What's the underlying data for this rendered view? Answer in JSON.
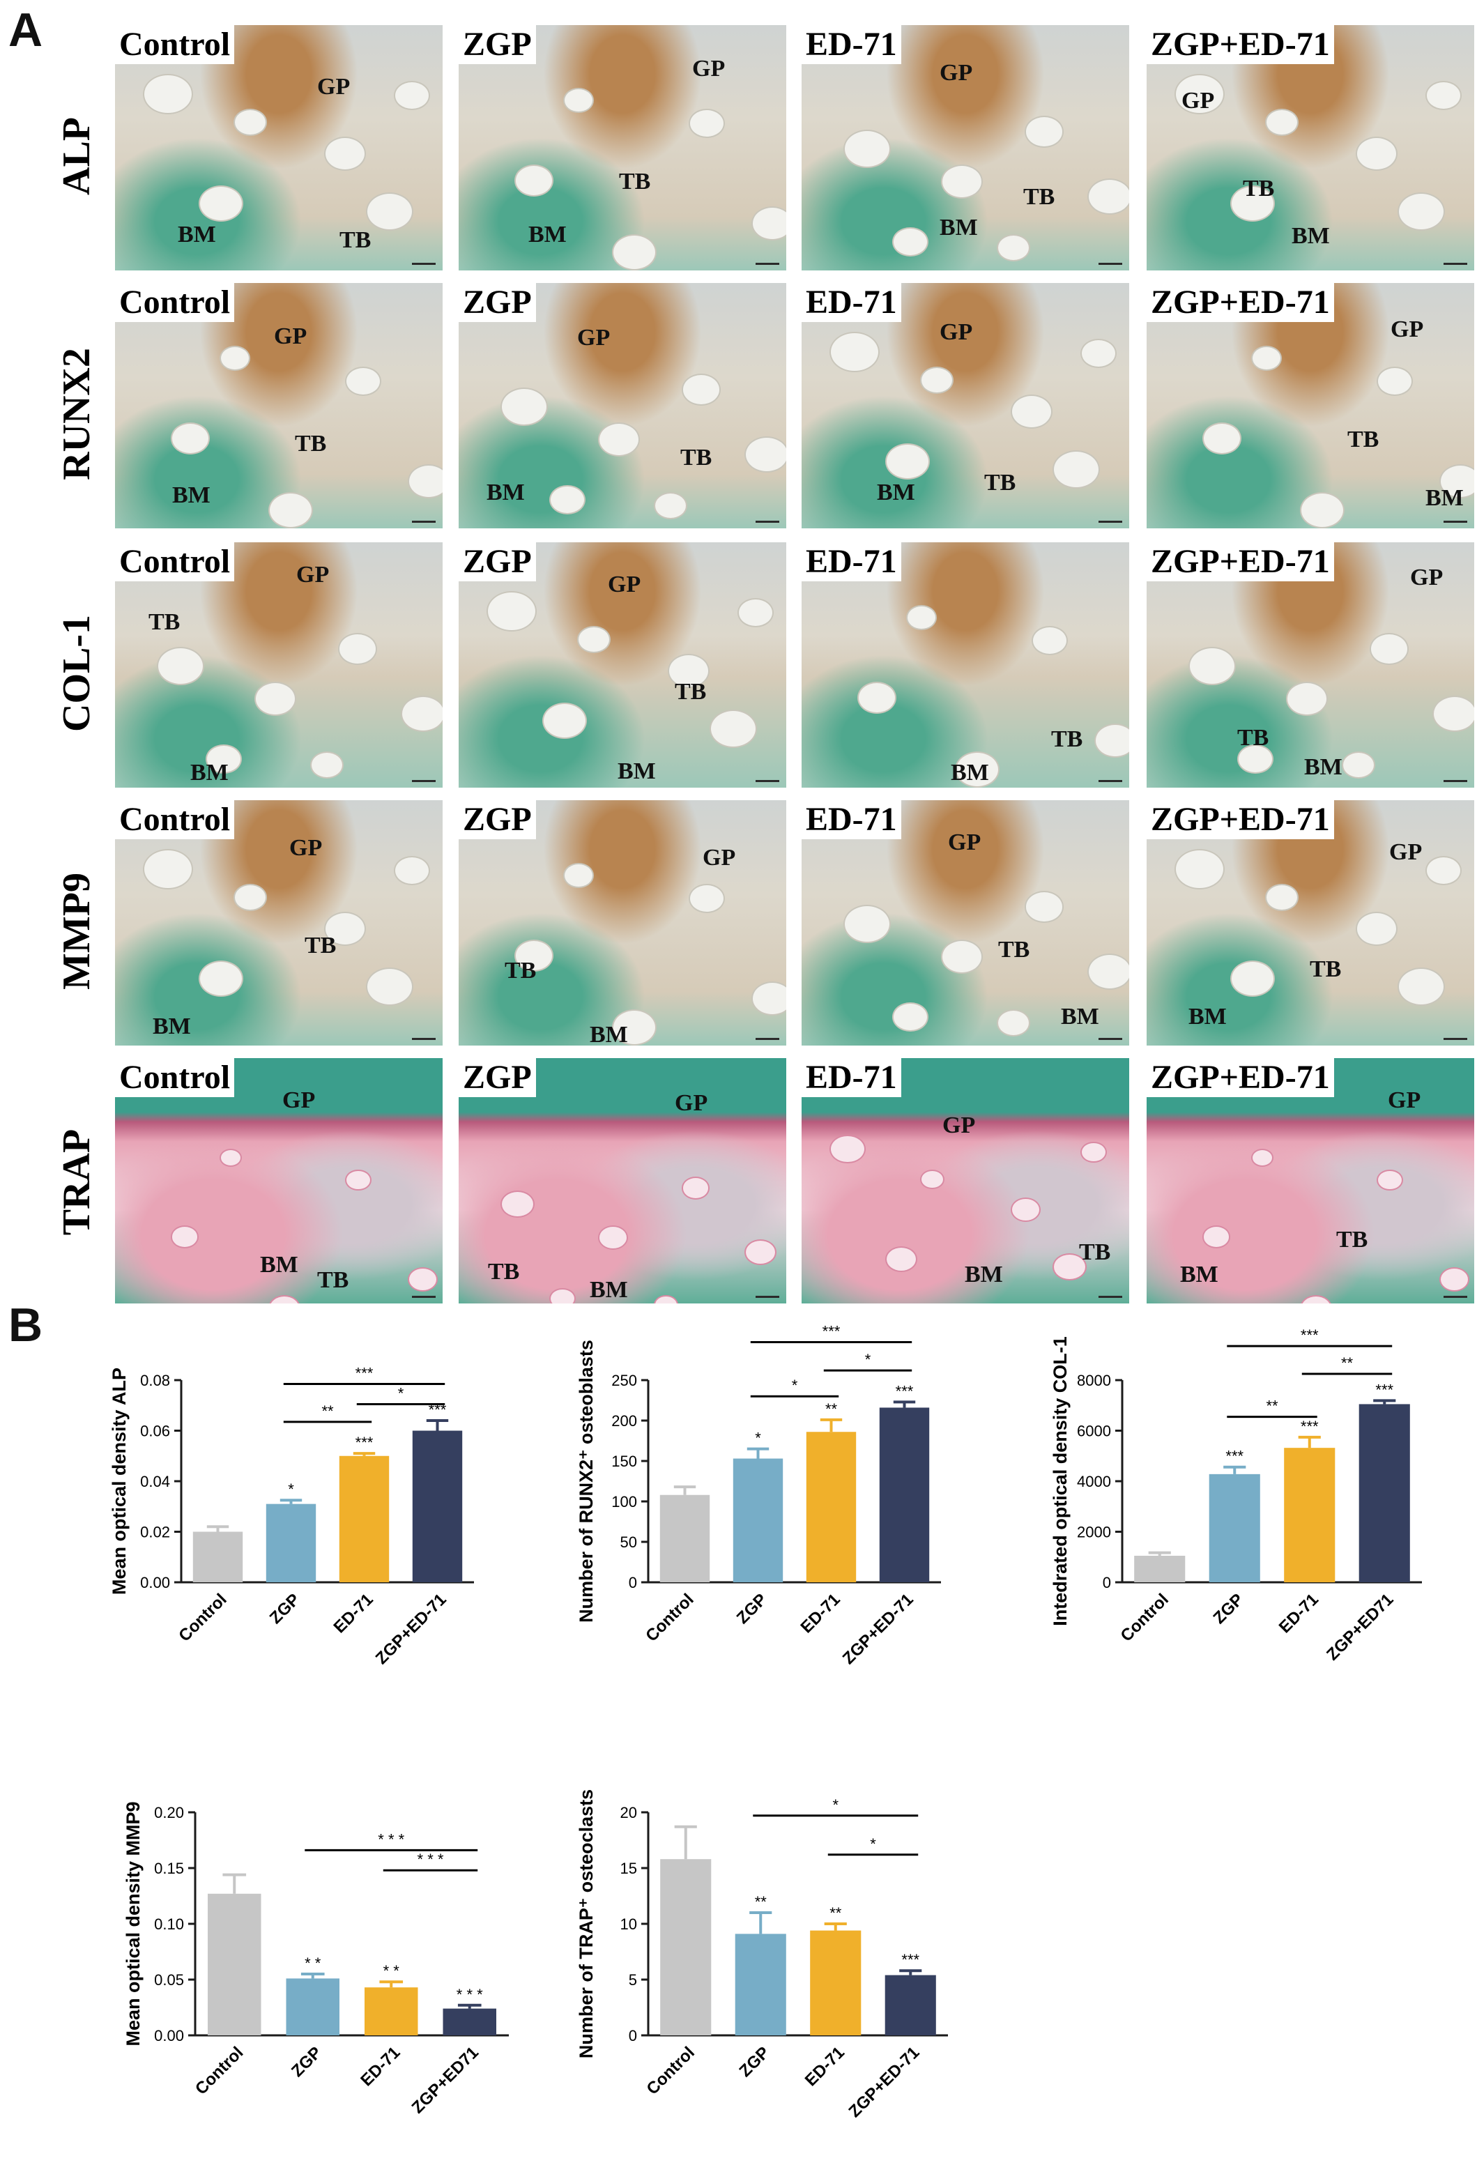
{
  "panel_labels": {
    "a": "A",
    "b": "B"
  },
  "histology": {
    "rows": [
      "ALP",
      "RUNX2",
      "COL-1",
      "MMP9",
      "TRAP"
    ],
    "groups": [
      "Control",
      "ZGP",
      "ED-71",
      "ZGP+ED-71"
    ],
    "tiles": [
      [
        [
          "GP",
          "BM",
          "TB"
        ],
        [
          "GP",
          "TB",
          "BM"
        ],
        [
          "GP",
          "TB",
          "BM"
        ],
        [
          "GP",
          "TB",
          "BM"
        ]
      ],
      [
        [
          "GP",
          "TB",
          "BM"
        ],
        [
          "GP",
          "TB",
          "BM"
        ],
        [
          "GP",
          "TB",
          "BM"
        ],
        [
          "GP",
          "TB",
          "BM"
        ]
      ],
      [
        [
          "GP",
          "TB",
          "BM"
        ],
        [
          "GP",
          "TB",
          "BM"
        ],
        [
          "TB",
          "BM"
        ],
        [
          "GP",
          "TB",
          "BM"
        ]
      ],
      [
        [
          "GP",
          "TB",
          "BM"
        ],
        [
          "GP",
          "TB",
          "BM"
        ],
        [
          "GP",
          "TB",
          "BM"
        ],
        [
          "GP",
          "TB",
          "BM"
        ]
      ],
      [
        [
          "GP",
          "BM",
          "TB"
        ],
        [
          "GP",
          "TB",
          "BM"
        ],
        [
          "GP",
          "TB",
          "BM"
        ],
        [
          "GP",
          "TB",
          "BM"
        ]
      ]
    ]
  },
  "colors": {
    "control": "#c6c6c6",
    "zgp": "#77adc7",
    "ed71": "#f0b02b",
    "combo": "#353f5f",
    "axis": "#1a1a1a",
    "ihc_bg": "#ddd8cc",
    "brown_stain": "#b88450",
    "green_stain": "#4fa88e",
    "trap_teal": "#3b9e8c",
    "trap_pink": "#e8a4b6"
  },
  "chart_data": [
    {
      "type": "bar",
      "ylabel": "Mean optical density ALP",
      "categories": [
        "Control",
        "ZGP",
        "ED-71",
        "ZGP+ED-71"
      ],
      "values": [
        0.02,
        0.031,
        0.05,
        0.06
      ],
      "errors": [
        0.002,
        0.0015,
        0.001,
        0.004
      ],
      "bar_stars": [
        "",
        "*",
        "***",
        "***"
      ],
      "ylim": [
        0,
        0.08
      ],
      "yticks": [
        "0.00",
        "0.02",
        "0.04",
        "0.06",
        "0.08"
      ],
      "brackets": [
        {
          "from": 1,
          "to": 3,
          "label": "***",
          "level": 0.0785
        },
        {
          "from": 2,
          "to": 3,
          "label": "*",
          "level": 0.0705
        },
        {
          "from": 1,
          "to": 2,
          "label": "**",
          "level": 0.0635
        }
      ]
    },
    {
      "type": "bar",
      "ylabel": "Number of RUNX2⁺ osteoblasts",
      "categories": [
        "Control",
        "ZGP",
        "ED-71",
        "ZGP+ED-71"
      ],
      "values": [
        108,
        153,
        186,
        216
      ],
      "errors": [
        10,
        12,
        15,
        7
      ],
      "bar_stars": [
        "",
        "*",
        "**",
        "***"
      ],
      "ylim": [
        0,
        250
      ],
      "yticks": [
        "0",
        "50",
        "100",
        "150",
        "200",
        "250"
      ],
      "brackets": [
        {
          "from": 1,
          "to": 3,
          "label": "***",
          "level": 297
        },
        {
          "from": 2,
          "to": 3,
          "label": "*",
          "level": 262
        },
        {
          "from": 1,
          "to": 2,
          "label": "*",
          "level": 230
        }
      ]
    },
    {
      "type": "bar",
      "ylabel": "Intedrated optical density COL-1",
      "categories": [
        "Control",
        "ZGP",
        "ED-71",
        "ZGP+ED71"
      ],
      "values": [
        1050,
        4280,
        5320,
        7050
      ],
      "errors": [
        120,
        280,
        420,
        140
      ],
      "bar_stars": [
        "",
        "***",
        "***",
        "***"
      ],
      "ylim": [
        0,
        8000
      ],
      "yticks": [
        "0",
        "2000",
        "4000",
        "6000",
        "8000"
      ],
      "brackets": [
        {
          "from": 1,
          "to": 3,
          "label": "***",
          "level": 9350
        },
        {
          "from": 2,
          "to": 3,
          "label": "**",
          "level": 8250
        },
        {
          "from": 1,
          "to": 2,
          "label": "**",
          "level": 6550
        }
      ]
    },
    {
      "type": "bar",
      "ylabel": "Mean optical density MMP9",
      "categories": [
        "Control",
        "ZGP",
        "ED-71",
        "ZGP+ED71"
      ],
      "values": [
        0.127,
        0.051,
        0.043,
        0.024
      ],
      "errors": [
        0.017,
        0.004,
        0.005,
        0.003
      ],
      "bar_stars": [
        "",
        "* *",
        "* *",
        "* * *"
      ],
      "ylim": [
        0,
        0.2
      ],
      "yticks": [
        "0.00",
        "0.05",
        "0.10",
        "0.15",
        "0.20"
      ],
      "brackets": [
        {
          "from": 1,
          "to": 3,
          "label": "* * *",
          "level": 0.166
        },
        {
          "from": 2,
          "to": 3,
          "label": "* * *",
          "level": 0.148
        }
      ]
    },
    {
      "type": "bar",
      "ylabel": "Number of TRAP⁺ osteoclasts",
      "categories": [
        "Control",
        "ZGP",
        "ED-71",
        "ZGP+ED-71"
      ],
      "values": [
        15.8,
        9.1,
        9.4,
        5.4
      ],
      "errors": [
        2.9,
        1.9,
        0.6,
        0.4
      ],
      "bar_stars": [
        "",
        "**",
        "**",
        "***"
      ],
      "ylim": [
        0,
        20
      ],
      "yticks": [
        "0",
        "5",
        "10",
        "15",
        "20"
      ],
      "brackets": [
        {
          "from": 1,
          "to": 3,
          "label": "*",
          "level": 19.7
        },
        {
          "from": 2,
          "to": 3,
          "label": "*",
          "level": 16.2
        }
      ]
    }
  ]
}
